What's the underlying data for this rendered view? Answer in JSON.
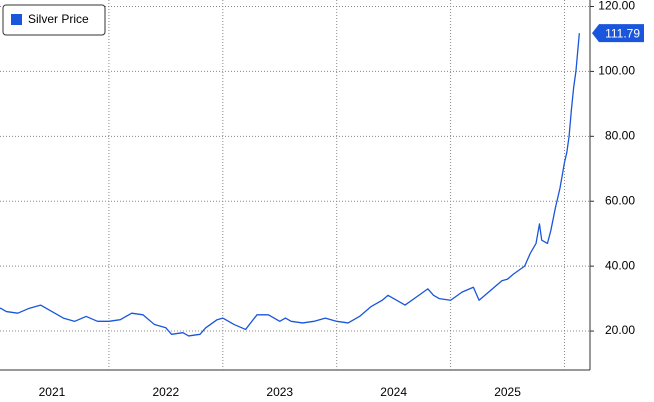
{
  "chart_data": {
    "type": "line",
    "legend": "Silver Price",
    "color": "#1a56db",
    "x": [
      2021.0,
      2021.05,
      2021.1,
      2021.2,
      2021.3,
      2021.4,
      2021.5,
      2021.6,
      2021.7,
      2021.8,
      2021.9,
      2022.0,
      2022.1,
      2022.2,
      2022.3,
      2022.4,
      2022.5,
      2022.55,
      2022.65,
      2022.7,
      2022.8,
      2022.85,
      2022.95,
      2023.0,
      2023.1,
      2023.2,
      2023.3,
      2023.4,
      2023.5,
      2023.55,
      2023.6,
      2023.7,
      2023.8,
      2023.9,
      2024.0,
      2024.1,
      2024.2,
      2024.3,
      2024.4,
      2024.45,
      2024.55,
      2024.6,
      2024.7,
      2024.8,
      2024.85,
      2024.9,
      2025.0,
      2025.1,
      2025.2,
      2025.25,
      2025.35,
      2025.45,
      2025.5,
      2025.55,
      2025.65,
      2025.7,
      2025.75,
      2025.78,
      2025.8,
      2025.85,
      2025.88,
      2025.92,
      2025.96,
      2026.0,
      2026.02,
      2026.04,
      2026.06,
      2026.08,
      2026.1,
      2026.13
    ],
    "values": [
      27,
      27,
      26,
      25.5,
      27,
      28,
      26,
      24,
      23,
      24.5,
      23,
      23,
      23.5,
      25.5,
      25,
      22,
      21,
      19,
      19.5,
      18.5,
      19,
      21,
      23.5,
      24,
      22,
      20.5,
      25,
      25,
      23,
      24,
      23,
      22.5,
      23,
      24,
      23,
      22.5,
      24.5,
      27.5,
      29.5,
      31,
      29,
      28,
      30.5,
      33,
      31,
      30,
      29.5,
      32,
      33.5,
      29.5,
      32.5,
      35.5,
      36,
      37.5,
      40,
      44,
      47,
      53,
      48,
      47,
      51,
      58,
      64,
      72,
      75,
      80,
      88,
      95,
      100,
      111.79
    ],
    "xlim": [
      2021.0,
      2026.2
    ],
    "xticks": [
      {
        "value": 2021.5,
        "label": "2021"
      },
      {
        "value": 2022.5,
        "label": "2022"
      },
      {
        "value": 2023.5,
        "label": "2023"
      },
      {
        "value": 2024.5,
        "label": "2024"
      },
      {
        "value": 2025.5,
        "label": "2025"
      }
    ],
    "xgrid": [
      2022,
      2023,
      2024,
      2025,
      2026
    ],
    "ylim": [
      8,
      122
    ],
    "yticks": [
      {
        "value": 20,
        "label": "20.00"
      },
      {
        "value": 40,
        "label": "40.00"
      },
      {
        "value": 60,
        "label": "60.00"
      },
      {
        "value": 80,
        "label": "80.00"
      },
      {
        "value": 100,
        "label": "100.00"
      },
      {
        "value": 120,
        "label": "120.00"
      }
    ],
    "grid": true
  }
}
